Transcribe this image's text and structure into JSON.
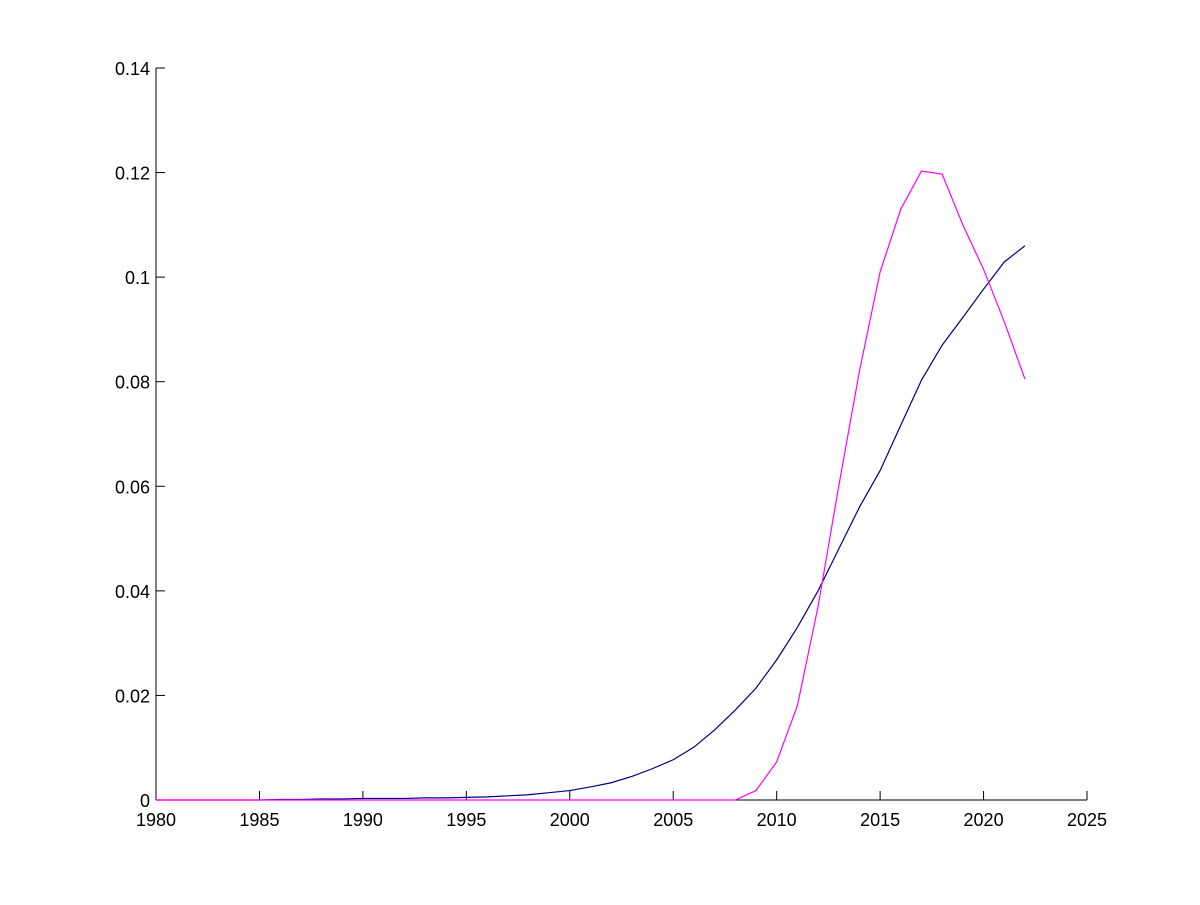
{
  "chart_data": {
    "type": "line",
    "x": [
      1980,
      1981,
      1982,
      1983,
      1984,
      1985,
      1986,
      1987,
      1988,
      1989,
      1990,
      1991,
      1992,
      1993,
      1994,
      1995,
      1996,
      1997,
      1998,
      1999,
      2000,
      2001,
      2002,
      2003,
      2004,
      2005,
      2006,
      2007,
      2008,
      2009,
      2010,
      2011,
      2012,
      2013,
      2014,
      2015,
      2016,
      2017,
      2018,
      2019,
      2020,
      2021,
      2022
    ],
    "series": [
      {
        "color": "#000080",
        "values": [
          0,
          0,
          0,
          0,
          0,
          0,
          0.0001,
          0.0001,
          0.0002,
          0.0002,
          0.0003,
          0.0003,
          0.0003,
          0.0004,
          0.0004,
          0.0005,
          0.0006,
          0.0008,
          0.001,
          0.0014,
          0.0018,
          0.0025,
          0.0033,
          0.0045,
          0.006,
          0.0077,
          0.0101,
          0.0134,
          0.0172,
          0.0214,
          0.0268,
          0.033,
          0.04,
          0.048,
          0.056,
          0.063,
          0.0717,
          0.0803,
          0.087,
          0.0923,
          0.0977,
          0.1029,
          0.106
        ]
      },
      {
        "color": "#ff00ff",
        "values": [
          0,
          0,
          0,
          0,
          0,
          0,
          0,
          0,
          0,
          0,
          0,
          0,
          0,
          0,
          0,
          0,
          0,
          0,
          0,
          0,
          0,
          0,
          0,
          0,
          0,
          0,
          0,
          0,
          0,
          0.0018,
          0.0073,
          0.018,
          0.037,
          0.06,
          0.082,
          0.101,
          0.113,
          0.1203,
          0.1197,
          0.11,
          0.1015,
          0.0915,
          0.0805
        ]
      }
    ],
    "xlim": [
      1980,
      2025
    ],
    "xticks": [
      1980,
      1985,
      1990,
      1995,
      2000,
      2005,
      2010,
      2015,
      2020,
      2025
    ],
    "ylim": [
      0,
      0.14
    ],
    "yticks": [
      0,
      0.02,
      0.04,
      0.06,
      0.08,
      0.1,
      0.12,
      0.14
    ],
    "grid": false
  }
}
